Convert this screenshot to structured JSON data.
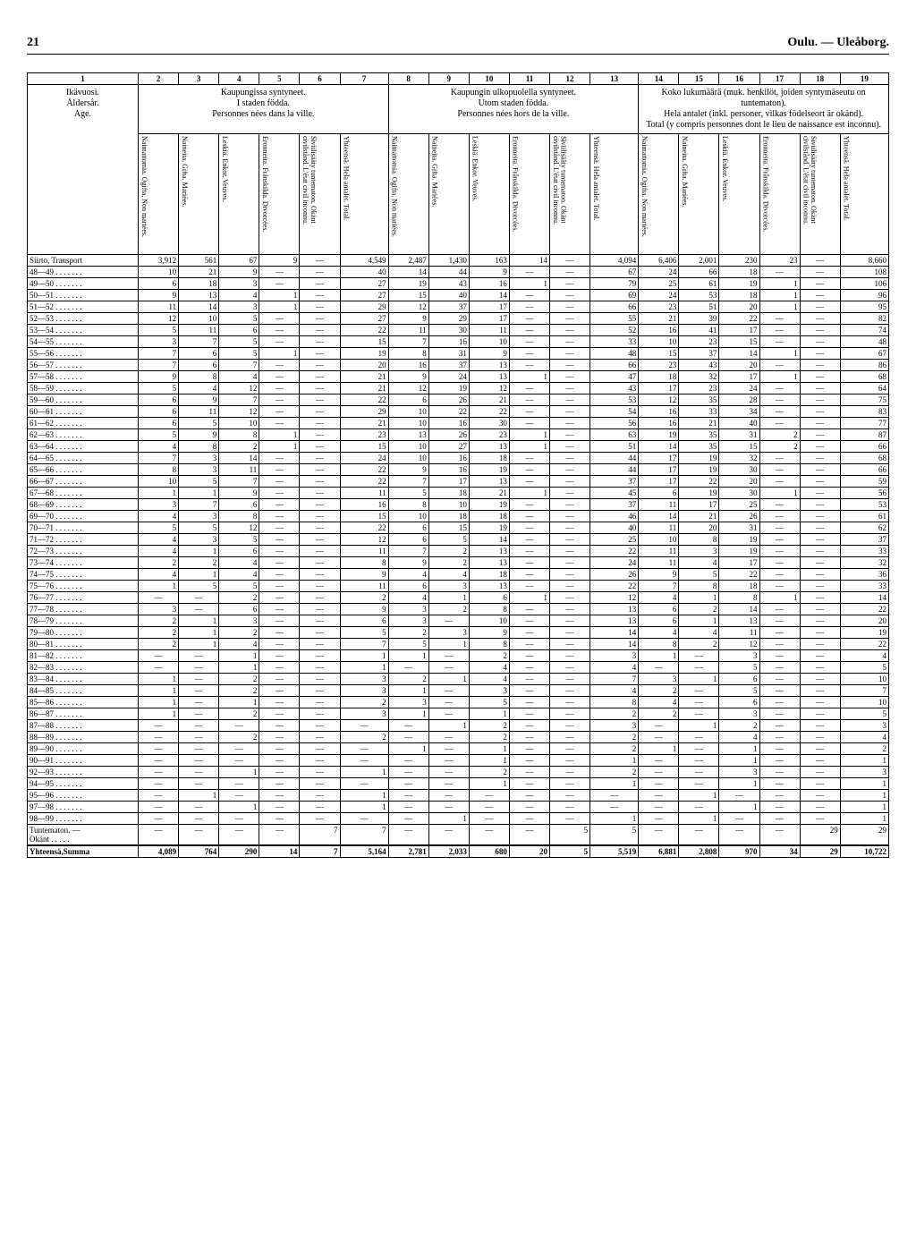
{
  "page_number": "21",
  "location": "Oulu. — Uleåborg.",
  "side_header": "Ikävuosi.\nÅldersår.\nAge.",
  "group1": "Kaupungissa syntyneet.\nI staden födda.\nPersonnes nées dans la ville.",
  "group2": "Kaupungin ulkopuolella syntyneet.\nUtom staden födda.\nPersonnes nées hors de la ville.",
  "group3": "Koko lukumäärä (muk. henkilöt, joiden syntymäseutu on tuntematon).\nHela antalet (inkl. personer, vilkas födelseort är okänd).\nTotal (y compris personnes dont le lieu de naissance est inconnu).",
  "col_headers": [
    "Naimattomia. Ogifta. Non mariées.",
    "Naineita. Gifta. Mariées.",
    "Leskiä. Enkor. Veuves.",
    "Eronneita. Frånskilda. Divorcées.",
    "Siviilisääty tuntematon. Okänt civilstånd. L'état civil inconnu.",
    "Yhteensä. Hela antalet. Total.",
    "Naimattomia. Ogifta. Non mariées.",
    "Naineita. Gifta. Mariées.",
    "Leskiä. Enkor. Veuves.",
    "Eronneita. Frånskilda. Divorcées.",
    "Siviilisääty tuntematon. Okänt civilstånd. L'état civil inconnu.",
    "Yhteensä. Hela antalet. Total.",
    "Naimattomia. Ogifta. Non mariées.",
    "Naineita. Gifta. Mariées.",
    "Leskiä. Enkor. Veuves.",
    "Eronneita. Frånskilda. Divorcées.",
    "Siviilisääty tuntematon. Okänt civilstånd. L'état civil inconnu.",
    "Yhteensä. Hela antalet. Total."
  ],
  "col_nums": [
    "1",
    "2",
    "3",
    "4",
    "5",
    "6",
    "7",
    "8",
    "9",
    "10",
    "11",
    "12",
    "13",
    "14",
    "15",
    "16",
    "17",
    "18",
    "19"
  ],
  "rows": [
    {
      "label": "Siirto, Transport",
      "v": [
        "3,912",
        "561",
        "67",
        "9",
        "—",
        "4,549",
        "2,487",
        "1,430",
        "163",
        "14",
        "—",
        "4,094",
        "6,406",
        "2,001",
        "230",
        "23",
        "—",
        "8,660"
      ]
    },
    {
      "label": "48—49 . . . . . . .",
      "v": [
        "10",
        "21",
        "9",
        "—",
        "—",
        "40",
        "14",
        "44",
        "9",
        "—",
        "—",
        "67",
        "24",
        "66",
        "18",
        "—",
        "—",
        "108"
      ]
    },
    {
      "label": "49—50 . . . . . . .",
      "v": [
        "6",
        "18",
        "3",
        "—",
        "—",
        "27",
        "19",
        "43",
        "16",
        "1",
        "—",
        "79",
        "25",
        "61",
        "19",
        "1",
        "—",
        "106"
      ]
    },
    {
      "label": "50—51 . . . . . . .",
      "v": [
        "9",
        "13",
        "4",
        "1",
        "—",
        "27",
        "15",
        "40",
        "14",
        "—",
        "—",
        "69",
        "24",
        "53",
        "18",
        "1",
        "—",
        "96"
      ]
    },
    {
      "label": "51—52 . . . . . . .",
      "v": [
        "11",
        "14",
        "3",
        "1",
        "—",
        "29",
        "12",
        "37",
        "17",
        "—",
        "—",
        "66",
        "23",
        "51",
        "20",
        "1",
        "—",
        "95"
      ]
    },
    {
      "label": "52—53 . . . . . . .",
      "v": [
        "12",
        "10",
        "5",
        "—",
        "—",
        "27",
        "9",
        "29",
        "17",
        "—",
        "—",
        "55",
        "21",
        "39",
        "22",
        "—",
        "—",
        "82"
      ]
    },
    {
      "label": "53—54 . . . . . . .",
      "v": [
        "5",
        "11",
        "6",
        "—",
        "—",
        "22",
        "11",
        "30",
        "11",
        "—",
        "—",
        "52",
        "16",
        "41",
        "17",
        "—",
        "—",
        "74"
      ]
    },
    {
      "label": "54—55 . . . . . . .",
      "v": [
        "3",
        "7",
        "5",
        "—",
        "—",
        "15",
        "7",
        "16",
        "10",
        "—",
        "—",
        "33",
        "10",
        "23",
        "15",
        "—",
        "—",
        "48"
      ]
    },
    {
      "label": "55—56 . . . . . . .",
      "v": [
        "7",
        "6",
        "5",
        "1",
        "—",
        "19",
        "8",
        "31",
        "9",
        "—",
        "—",
        "48",
        "15",
        "37",
        "14",
        "1",
        "—",
        "67"
      ]
    },
    {
      "label": "56—57 . . . . . . .",
      "v": [
        "7",
        "6",
        "7",
        "—",
        "—",
        "20",
        "16",
        "37",
        "13",
        "—",
        "—",
        "66",
        "23",
        "43",
        "20",
        "—",
        "—",
        "86"
      ]
    },
    {
      "label": "57—58 . . . . . . .",
      "v": [
        "9",
        "8",
        "4",
        "—",
        "—",
        "21",
        "9",
        "24",
        "13",
        "1",
        "—",
        "47",
        "18",
        "32",
        "17",
        "1",
        "—",
        "68"
      ]
    },
    {
      "label": "58—59 . . . . . . .",
      "v": [
        "5",
        "4",
        "12",
        "—",
        "—",
        "21",
        "12",
        "19",
        "12",
        "—",
        "—",
        "43",
        "17",
        "23",
        "24",
        "—",
        "—",
        "64"
      ]
    },
    {
      "label": "59—60 . . . . . . .",
      "v": [
        "6",
        "9",
        "7",
        "—",
        "—",
        "22",
        "6",
        "26",
        "21",
        "—",
        "—",
        "53",
        "12",
        "35",
        "28",
        "—",
        "—",
        "75"
      ]
    },
    {
      "label": "60—61 . . . . . . .",
      "v": [
        "6",
        "11",
        "12",
        "—",
        "—",
        "29",
        "10",
        "22",
        "22",
        "—",
        "—",
        "54",
        "16",
        "33",
        "34",
        "—",
        "—",
        "83"
      ]
    },
    {
      "label": "61—62 . . . . . . .",
      "v": [
        "6",
        "5",
        "10",
        "—",
        "—",
        "21",
        "10",
        "16",
        "30",
        "—",
        "—",
        "56",
        "16",
        "21",
        "40",
        "—",
        "—",
        "77"
      ]
    },
    {
      "label": "62—63 . . . . . . .",
      "v": [
        "5",
        "9",
        "8",
        "1",
        "—",
        "23",
        "13",
        "26",
        "23",
        "1",
        "—",
        "63",
        "19",
        "35",
        "31",
        "2",
        "—",
        "87"
      ]
    },
    {
      "label": "63—64 . . . . . . .",
      "v": [
        "4",
        "8",
        "2",
        "1",
        "—",
        "15",
        "10",
        "27",
        "13",
        "1",
        "—",
        "51",
        "14",
        "35",
        "15",
        "2",
        "—",
        "66"
      ]
    },
    {
      "label": "64—65 . . . . . . .",
      "v": [
        "7",
        "3",
        "14",
        "—",
        "—",
        "24",
        "10",
        "16",
        "18",
        "—",
        "—",
        "44",
        "17",
        "19",
        "32",
        "—",
        "—",
        "68"
      ]
    },
    {
      "label": "65—66 . . . . . . .",
      "v": [
        "8",
        "3",
        "11",
        "—",
        "—",
        "22",
        "9",
        "16",
        "19",
        "—",
        "—",
        "44",
        "17",
        "19",
        "30",
        "—",
        "—",
        "66"
      ]
    },
    {
      "label": "66—67 . . . . . . .",
      "v": [
        "10",
        "5",
        "7",
        "—",
        "—",
        "22",
        "7",
        "17",
        "13",
        "—",
        "—",
        "37",
        "17",
        "22",
        "20",
        "—",
        "—",
        "59"
      ]
    },
    {
      "label": "67—68 . . . . . . .",
      "v": [
        "1",
        "1",
        "9",
        "—",
        "—",
        "11",
        "5",
        "18",
        "21",
        "1",
        "—",
        "45",
        "6",
        "19",
        "30",
        "1",
        "—",
        "56"
      ]
    },
    {
      "label": "68—69 . . . . . . .",
      "v": [
        "3",
        "7",
        "6",
        "—",
        "—",
        "16",
        "8",
        "10",
        "19",
        "—",
        "—",
        "37",
        "11",
        "17",
        "25",
        "—",
        "—",
        "53"
      ]
    },
    {
      "label": "69—70 . . . . . . .",
      "v": [
        "4",
        "3",
        "8",
        "—",
        "—",
        "15",
        "10",
        "18",
        "18",
        "—",
        "—",
        "46",
        "14",
        "21",
        "26",
        "—",
        "—",
        "61"
      ]
    },
    {
      "label": "70—71 . . . . . . .",
      "v": [
        "5",
        "5",
        "12",
        "—",
        "—",
        "22",
        "6",
        "15",
        "19",
        "—",
        "—",
        "40",
        "11",
        "20",
        "31",
        "—",
        "—",
        "62"
      ]
    },
    {
      "label": "71—72 . . . . . . .",
      "v": [
        "4",
        "3",
        "5",
        "—",
        "—",
        "12",
        "6",
        "5",
        "14",
        "—",
        "—",
        "25",
        "10",
        "8",
        "19",
        "—",
        "—",
        "37"
      ]
    },
    {
      "label": "72—73 . . . . . . .",
      "v": [
        "4",
        "1",
        "6",
        "—",
        "—",
        "11",
        "7",
        "2",
        "13",
        "—",
        "—",
        "22",
        "11",
        "3",
        "19",
        "—",
        "—",
        "33"
      ]
    },
    {
      "label": "73—74 . . . . . . .",
      "v": [
        "2",
        "2",
        "4",
        "—",
        "—",
        "8",
        "9",
        "2",
        "13",
        "—",
        "—",
        "24",
        "11",
        "4",
        "17",
        "—",
        "—",
        "32"
      ]
    },
    {
      "label": "74—75 . . . . . . .",
      "v": [
        "4",
        "1",
        "4",
        "—",
        "—",
        "9",
        "4",
        "4",
        "18",
        "—",
        "—",
        "26",
        "9",
        "5",
        "22",
        "—",
        "—",
        "36"
      ]
    },
    {
      "label": "75—76 . . . . . . .",
      "v": [
        "1",
        "5",
        "5",
        "—",
        "—",
        "11",
        "6",
        "3",
        "13",
        "—",
        "—",
        "22",
        "7",
        "8",
        "18",
        "—",
        "—",
        "33"
      ]
    },
    {
      "label": "76—77 . . . . . . .",
      "v": [
        "—",
        "—",
        "2",
        "—",
        "—",
        "2",
        "4",
        "1",
        "6",
        "1",
        "—",
        "12",
        "4",
        "1",
        "8",
        "1",
        "—",
        "14"
      ]
    },
    {
      "label": "77—78 . . . . . . .",
      "v": [
        "3",
        "—",
        "6",
        "—",
        "—",
        "9",
        "3",
        "2",
        "8",
        "—",
        "—",
        "13",
        "6",
        "2",
        "14",
        "—",
        "—",
        "22"
      ]
    },
    {
      "label": "78—79 . . . . . . .",
      "v": [
        "2",
        "1",
        "3",
        "—",
        "—",
        "6",
        "3",
        "—",
        "10",
        "—",
        "—",
        "13",
        "6",
        "1",
        "13",
        "—",
        "—",
        "20"
      ]
    },
    {
      "label": "79—80 . . . . . . .",
      "v": [
        "2",
        "1",
        "2",
        "—",
        "—",
        "5",
        "2",
        "3",
        "9",
        "—",
        "—",
        "14",
        "4",
        "4",
        "11",
        "—",
        "—",
        "19"
      ]
    },
    {
      "label": "80—81 . . . . . . .",
      "v": [
        "2",
        "1",
        "4",
        "—",
        "—",
        "7",
        "5",
        "1",
        "8",
        "—",
        "—",
        "14",
        "8",
        "2",
        "12",
        "—",
        "—",
        "22"
      ]
    },
    {
      "label": "81—82 . . . . . . .",
      "v": [
        "—",
        "—",
        "1",
        "—",
        "—",
        "1",
        "1",
        "—",
        "2",
        "—",
        "—",
        "3",
        "1",
        "—",
        "3",
        "—",
        "—",
        "4"
      ]
    },
    {
      "label": "82—83 . . . . . . .",
      "v": [
        "—",
        "—",
        "1",
        "—",
        "—",
        "1",
        "—",
        "—",
        "4",
        "—",
        "—",
        "4",
        "—",
        "—",
        "5",
        "—",
        "—",
        "5"
      ]
    },
    {
      "label": "83—84 . . . . . . .",
      "v": [
        "1",
        "—",
        "2",
        "—",
        "—",
        "3",
        "2",
        "1",
        "4",
        "—",
        "—",
        "7",
        "3",
        "1",
        "6",
        "—",
        "—",
        "10"
      ]
    },
    {
      "label": "84—85 . . . . . . .",
      "v": [
        "1",
        "—",
        "2",
        "—",
        "—",
        "3",
        "1",
        "—",
        "3",
        "—",
        "—",
        "4",
        "2",
        "—",
        "5",
        "—",
        "—",
        "7"
      ]
    },
    {
      "label": "85—86 . . . . . . .",
      "v": [
        "1",
        "—",
        "1",
        "—",
        "—",
        "2",
        "3",
        "—",
        "5",
        "—",
        "—",
        "8",
        "4",
        "—",
        "6",
        "—",
        "—",
        "10"
      ]
    },
    {
      "label": "86—87 . . . . . . .",
      "v": [
        "1",
        "—",
        "2",
        "—",
        "—",
        "3",
        "1",
        "—",
        "1",
        "—",
        "—",
        "2",
        "2",
        "—",
        "3",
        "—",
        "—",
        "5"
      ]
    },
    {
      "label": "87—88 . . . . . . .",
      "v": [
        "—",
        "—",
        "—",
        "—",
        "—",
        "—",
        "—",
        "1",
        "2",
        "—",
        "—",
        "3",
        "—",
        "1",
        "2",
        "—",
        "—",
        "3"
      ]
    },
    {
      "label": "88—89 . . . . . . .",
      "v": [
        "—",
        "—",
        "2",
        "—",
        "—",
        "2",
        "—",
        "—",
        "2",
        "—",
        "—",
        "2",
        "—",
        "—",
        "4",
        "—",
        "—",
        "4"
      ]
    },
    {
      "label": "89—90 . . . . . . .",
      "v": [
        "—",
        "—",
        "—",
        "—",
        "—",
        "—",
        "1",
        "—",
        "1",
        "—",
        "—",
        "2",
        "1",
        "—",
        "1",
        "—",
        "—",
        "2"
      ]
    },
    {
      "label": "90—91 . . . . . . .",
      "v": [
        "—",
        "—",
        "—",
        "—",
        "—",
        "—",
        "—",
        "—",
        "1",
        "—",
        "—",
        "1",
        "—",
        "—",
        "1",
        "—",
        "—",
        "1"
      ]
    },
    {
      "label": "92—93 . . . . . . .",
      "v": [
        "—",
        "—",
        "1",
        "—",
        "—",
        "1",
        "—",
        "—",
        "2",
        "—",
        "—",
        "2",
        "—",
        "—",
        "3",
        "—",
        "—",
        "3"
      ]
    },
    {
      "label": "94—95 . . . . . . .",
      "v": [
        "—",
        "—",
        "—",
        "—",
        "—",
        "—",
        "—",
        "—",
        "1",
        "—",
        "—",
        "1",
        "—",
        "—",
        "1",
        "—",
        "—",
        "1"
      ]
    },
    {
      "label": "95—96 . . . . . . .",
      "v": [
        "—",
        "1",
        "—",
        "—",
        "—",
        "1",
        "—",
        "—",
        "—",
        "—",
        "—",
        "—",
        "—",
        "1",
        "—",
        "—",
        "—",
        "1"
      ]
    },
    {
      "label": "97—98 . . . . . . .",
      "v": [
        "—",
        "—",
        "1",
        "—",
        "—",
        "1",
        "—",
        "—",
        "—",
        "—",
        "—",
        "—",
        "—",
        "—",
        "1",
        "—",
        "—",
        "1"
      ]
    },
    {
      "label": "98—99 . . . . . . .",
      "v": [
        "—",
        "—",
        "—",
        "—",
        "—",
        "—",
        "—",
        "1",
        "—",
        "—",
        "—",
        "1",
        "—",
        "1",
        "—",
        "—",
        "—",
        "1"
      ]
    },
    {
      "label": "Tuntematon. —\n Okänt . . . . .",
      "v": [
        "—",
        "—",
        "—",
        "—",
        "7",
        "7",
        "—",
        "—",
        "—",
        "—",
        "5",
        "5",
        "—",
        "—",
        "—",
        "—",
        "29",
        "29"
      ]
    }
  ],
  "total": {
    "label": "Yhteensä,Summa",
    "v": [
      "4,089",
      "764",
      "290",
      "14",
      "7",
      "5,164",
      "2,781",
      "2,033",
      "680",
      "20",
      "5",
      "5,519",
      "6,881",
      "2,808",
      "970",
      "34",
      "29",
      "10,722"
    ]
  }
}
